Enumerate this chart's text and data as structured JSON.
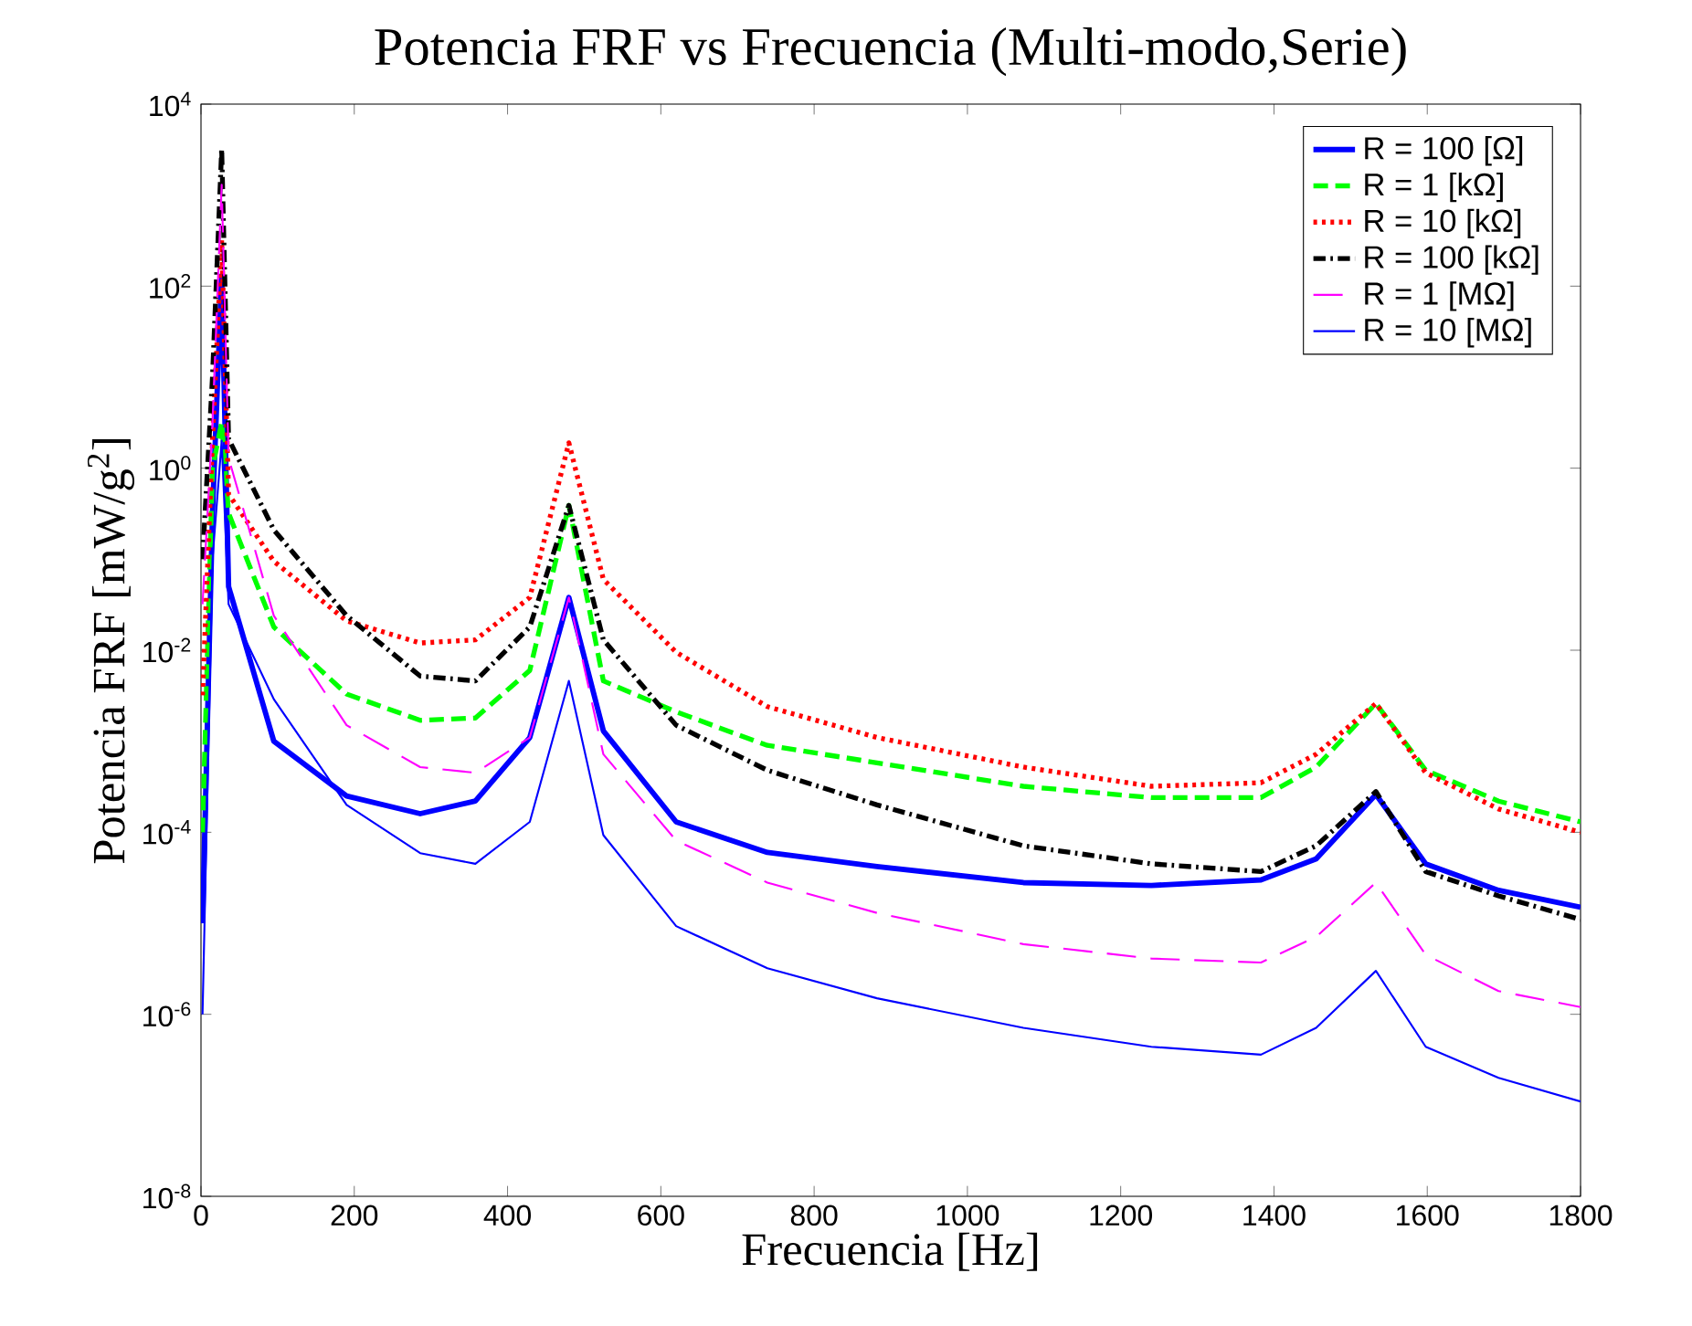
{
  "chart_data": {
    "type": "line",
    "title": "Potencia FRF vs Frecuencia (Multi-modo,Serie)",
    "xlabel": "Frecuencia [Hz]",
    "ylabel": "Potencia FRF [mW/g$^{2}$]",
    "x": [
      2,
      15,
      27,
      36,
      95,
      190,
      286,
      358,
      429,
      480,
      525,
      620,
      739,
      882,
      1073,
      1240,
      1383,
      1455,
      1533,
      1598,
      1693,
      1800
    ],
    "series": [
      {
        "name": "R = 100 [Ω]",
        "color": "#0000ff",
        "line_style": "solid",
        "values": [
          1e-05,
          0.32,
          130,
          0.05,
          0.001,
          0.00025,
          0.00016,
          0.00022,
          0.0011,
          0.038,
          0.0013,
          0.00013,
          6e-05,
          4.2e-05,
          2.8e-05,
          2.6e-05,
          3e-05,
          5.1e-05,
          0.00026,
          4.5e-05,
          2.3e-05,
          1.5e-05
        ]
      },
      {
        "name": "R = 1 [kΩ]",
        "color": "#00ff00",
        "line_style": "dashed",
        "values": [
          0.0001,
          1,
          3.2,
          0.32,
          0.018,
          0.0033,
          0.0017,
          0.0018,
          0.006,
          0.39,
          0.0046,
          0.0021,
          0.0009,
          0.00058,
          0.00032,
          0.00024,
          0.00024,
          0.00052,
          0.0026,
          0.00048,
          0.00022,
          0.00013
        ]
      },
      {
        "name": "R = 10 [kΩ]",
        "color": "#ff0000",
        "line_style": "dotted",
        "values": [
          0.0032,
          2,
          320,
          0.52,
          0.095,
          0.021,
          0.012,
          0.013,
          0.038,
          1.9,
          0.06,
          0.0095,
          0.0024,
          0.0011,
          0.00052,
          0.00032,
          0.00035,
          0.00072,
          0.0026,
          0.00045,
          0.00018,
          0.0001
        ]
      },
      {
        "name": "R = 100 [kΩ]",
        "color": "#000000",
        "line_style": "dashdot",
        "values": [
          0.1,
          10,
          3200,
          2.1,
          0.21,
          0.024,
          0.0052,
          0.0046,
          0.018,
          0.39,
          0.013,
          0.0015,
          0.00048,
          0.0002,
          7.1e-05,
          4.5e-05,
          3.7e-05,
          7.1e-05,
          0.00028,
          3.7e-05,
          2e-05,
          1.1e-05
        ]
      },
      {
        "name": "R = 1 [MΩ]",
        "color": "#ff00ff",
        "line_style": "longdash",
        "values": [
          0.032,
          3.2,
          1300,
          1.3,
          0.024,
          0.0015,
          0.00052,
          0.00045,
          0.0011,
          0.038,
          0.00072,
          8.1e-05,
          2.8e-05,
          1.3e-05,
          5.9e-06,
          4.1e-06,
          3.7e-06,
          7.1e-06,
          2.8e-05,
          4.5e-06,
          1.8e-06,
          1.2e-06
        ]
      },
      {
        "name": "R = 10 [MΩ]",
        "color": "#0000ff",
        "line_style": "solid",
        "values": [
          1e-06,
          0.1,
          2,
          0.032,
          0.0029,
          0.0002,
          5.9e-05,
          4.5e-05,
          0.00013,
          0.0046,
          9.3e-05,
          9.3e-06,
          3.2e-06,
          1.5e-06,
          7.1e-07,
          4.4e-07,
          3.6e-07,
          7.1e-07,
          3e-06,
          4.4e-07,
          2e-07,
          1.1e-07
        ]
      }
    ],
    "xlim": [
      0,
      1800
    ],
    "ylim": [
      1e-08,
      10000.0
    ],
    "xticks": [
      0,
      200,
      400,
      600,
      800,
      1000,
      1200,
      1400,
      1600,
      1800
    ],
    "yticks": [
      {
        "value": 1e-08,
        "label": "10$^{-8}$"
      },
      {
        "value": 1e-06,
        "label": "10$^{-6}$"
      },
      {
        "value": 0.0001,
        "label": "10$^{-4}$"
      },
      {
        "value": 0.01,
        "label": "10$^{-2}$"
      },
      {
        "value": 1,
        "label": "10$^{0}$"
      },
      {
        "value": 100,
        "label": "10$^{2}$"
      },
      {
        "value": 10000,
        "label": "10$^{4}$"
      }
    ],
    "log": "y",
    "grid": false,
    "legend": "top right"
  }
}
